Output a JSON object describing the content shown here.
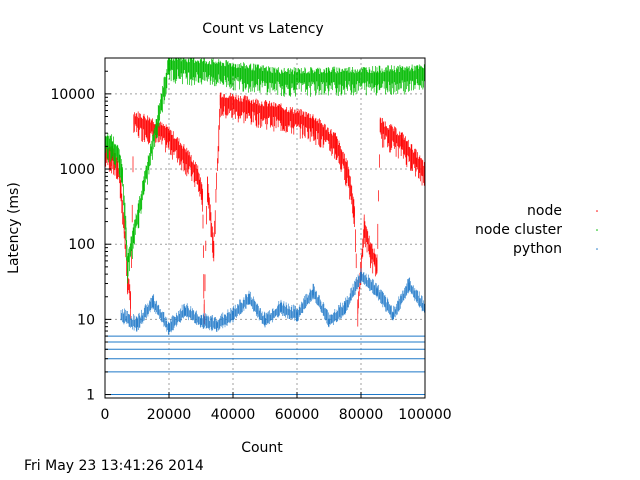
{
  "chart_data": {
    "type": "scatter",
    "title": "Count vs Latency",
    "xlabel": "Count",
    "ylabel": "Latency (ms)",
    "xlim": [
      0,
      100000
    ],
    "ylim": [
      0.9,
      30000
    ],
    "yscale": "log",
    "x_ticks": [
      0,
      20000,
      40000,
      60000,
      80000,
      100000
    ],
    "x_tick_labels": [
      "0",
      "20000",
      "40000",
      "60000",
      "80000",
      "100000"
    ],
    "y_ticks": [
      1,
      10,
      100,
      1000,
      10000
    ],
    "y_tick_labels": [
      "1",
      "10",
      "100",
      "1000",
      "10000"
    ],
    "grid": true,
    "legend_position": "right",
    "series": [
      {
        "name": "node",
        "color": "#ff0000",
        "description_points": [
          [
            0,
            1900
          ],
          [
            2000,
            1700
          ],
          [
            4000,
            1200
          ],
          [
            5000,
            600
          ],
          [
            6000,
            200
          ],
          [
            7000,
            40
          ],
          [
            8000,
            20
          ],
          [
            9000,
            5000
          ],
          [
            14000,
            4200
          ],
          [
            20000,
            3000
          ],
          [
            26000,
            1500
          ],
          [
            29000,
            900
          ],
          [
            30500,
            500
          ],
          [
            31000,
            15
          ],
          [
            32000,
            700
          ],
          [
            34000,
            100
          ],
          [
            36000,
            9000
          ],
          [
            45000,
            7500
          ],
          [
            55000,
            6000
          ],
          [
            65000,
            4500
          ],
          [
            72000,
            2500
          ],
          [
            76000,
            1000
          ],
          [
            78000,
            300
          ],
          [
            79000,
            15
          ],
          [
            81000,
            200
          ],
          [
            83000,
            90
          ],
          [
            85000,
            60
          ],
          [
            86000,
            4000
          ],
          [
            93000,
            2500
          ],
          [
            97000,
            1500
          ],
          [
            100000,
            1000
          ]
        ]
      },
      {
        "name": "node cluster",
        "color": "#00bb00",
        "description_points": [
          [
            0,
            2500
          ],
          [
            2000,
            2400
          ],
          [
            4000,
            1800
          ],
          [
            5500,
            900
          ],
          [
            6500,
            200
          ],
          [
            7000,
            60
          ],
          [
            20000,
            28000
          ],
          [
            40000,
            22000
          ],
          [
            56000,
            18000
          ],
          [
            70000,
            18500
          ],
          [
            85000,
            19000
          ],
          [
            100000,
            20000
          ]
        ]
      },
      {
        "name": "python",
        "color": "#1e78c8",
        "baseline_levels": [
          1,
          2,
          3,
          4,
          5,
          6
        ],
        "description_points": [
          [
            5000,
            12
          ],
          [
            10000,
            9
          ],
          [
            15000,
            18
          ],
          [
            20000,
            8
          ],
          [
            25000,
            14
          ],
          [
            30000,
            10
          ],
          [
            35000,
            9
          ],
          [
            40000,
            12
          ],
          [
            45000,
            20
          ],
          [
            50000,
            10
          ],
          [
            55000,
            15
          ],
          [
            60000,
            12
          ],
          [
            65000,
            25
          ],
          [
            70000,
            10
          ],
          [
            75000,
            15
          ],
          [
            80000,
            40
          ],
          [
            85000,
            25
          ],
          [
            90000,
            12
          ],
          [
            95000,
            30
          ],
          [
            100000,
            15
          ]
        ]
      }
    ]
  },
  "footer": {
    "timestamp": "Fri May 23 13:41:26 2014"
  }
}
